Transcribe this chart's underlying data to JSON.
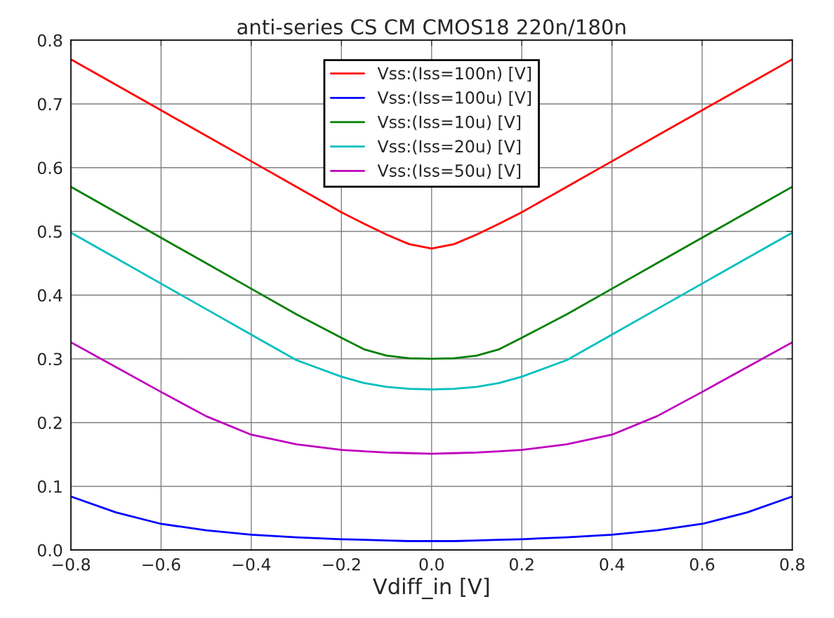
{
  "chart_data": {
    "type": "line",
    "title": "anti-series CS CM CMOS18 220n/180n",
    "xlabel": "Vdiff_in [V]",
    "x": [
      -0.8,
      -0.7,
      -0.6,
      -0.5,
      -0.4,
      -0.3,
      -0.2,
      -0.15,
      -0.1,
      -0.05,
      0,
      0.05,
      0.1,
      0.15,
      0.2,
      0.3,
      0.4,
      0.5,
      0.6,
      0.7,
      0.8
    ],
    "series": [
      {
        "name": "Vss:(Iss=100n) [V]",
        "color": "#ff0000",
        "values": [
          0.77,
          0.73,
          0.69,
          0.65,
          0.61,
          0.57,
          0.53,
          0.512,
          0.495,
          0.48,
          0.473,
          0.48,
          0.495,
          0.512,
          0.53,
          0.57,
          0.61,
          0.65,
          0.69,
          0.73,
          0.77
        ]
      },
      {
        "name": "Vss:(Iss=100u) [V]",
        "color": "#0000ff",
        "values": [
          0.084,
          0.059,
          0.041,
          0.031,
          0.024,
          0.02,
          0.017,
          0.016,
          0.015,
          0.014,
          0.014,
          0.014,
          0.015,
          0.016,
          0.017,
          0.02,
          0.024,
          0.031,
          0.041,
          0.059,
          0.084
        ]
      },
      {
        "name": "Vss:(Iss=10u) [V]",
        "color": "#008000",
        "values": [
          0.57,
          0.53,
          0.49,
          0.45,
          0.41,
          0.37,
          0.333,
          0.315,
          0.305,
          0.301,
          0.3,
          0.301,
          0.305,
          0.315,
          0.333,
          0.37,
          0.41,
          0.45,
          0.49,
          0.53,
          0.57
        ]
      },
      {
        "name": "Vss:(Iss=20u) [V]",
        "color": "#00bfbf",
        "values": [
          0.498,
          0.458,
          0.418,
          0.378,
          0.338,
          0.298,
          0.272,
          0.262,
          0.256,
          0.253,
          0.252,
          0.253,
          0.256,
          0.262,
          0.272,
          0.298,
          0.338,
          0.378,
          0.418,
          0.458,
          0.498
        ]
      },
      {
        "name": "Vss:(Iss=50u) [V]",
        "color": "#bf00bf",
        "values": [
          0.326,
          0.287,
          0.248,
          0.21,
          0.181,
          0.166,
          0.157,
          0.155,
          0.153,
          0.152,
          0.151,
          0.152,
          0.153,
          0.155,
          0.157,
          0.166,
          0.181,
          0.21,
          0.248,
          0.287,
          0.326
        ]
      }
    ],
    "xlim": [
      -0.8,
      0.8
    ],
    "xticks": [
      -0.8,
      -0.6,
      -0.4,
      -0.2,
      {
        "value": 0,
        "label": "0.0"
      },
      0.2,
      0.4,
      0.6,
      0.8
    ],
    "ylim": [
      0.0,
      0.8
    ],
    "yticks": [
      {
        "value": 0,
        "label": "0.0"
      },
      0.1,
      0.2,
      0.3,
      0.4,
      0.5,
      0.6,
      0.7,
      0.8
    ],
    "grid": true,
    "legend": "top",
    "line_style": "solid"
  }
}
